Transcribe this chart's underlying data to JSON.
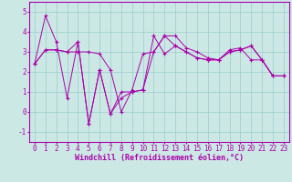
{
  "xlabel": "Windchill (Refroidissement éolien,°C)",
  "bg_color": "#cce8e4",
  "line_color": "#aa00aa",
  "grid_color": "#99cccc",
  "spine_color": "#aa00aa",
  "xlim": [
    -0.5,
    23.5
  ],
  "ylim": [
    -1.5,
    5.5
  ],
  "yticks": [
    -1,
    0,
    1,
    2,
    3,
    4,
    5
  ],
  "xticks": [
    0,
    1,
    2,
    3,
    4,
    5,
    6,
    7,
    8,
    9,
    10,
    11,
    12,
    13,
    14,
    15,
    16,
    17,
    18,
    19,
    20,
    21,
    22,
    23
  ],
  "series": [
    [
      2.4,
      3.1,
      3.1,
      3.0,
      3.0,
      3.0,
      2.9,
      2.1,
      0.0,
      1.1,
      2.9,
      3.0,
      3.8,
      3.8,
      3.2,
      3.0,
      2.7,
      2.6,
      3.0,
      3.1,
      3.3,
      2.6,
      1.8,
      1.8
    ],
    [
      2.4,
      4.8,
      3.5,
      0.7,
      3.5,
      -0.6,
      2.1,
      -0.1,
      1.0,
      1.0,
      1.1,
      3.8,
      2.9,
      3.3,
      3.0,
      2.7,
      2.6,
      2.6,
      3.1,
      3.2,
      2.6,
      2.6,
      1.8,
      1.8
    ],
    [
      2.4,
      3.1,
      3.1,
      3.0,
      3.5,
      -0.6,
      2.1,
      -0.1,
      0.7,
      1.0,
      1.1,
      3.0,
      3.8,
      3.3,
      3.0,
      2.7,
      2.6,
      2.6,
      3.0,
      3.1,
      3.3,
      2.6,
      1.8,
      1.8
    ]
  ],
  "tick_fontsize": 5.5,
  "xlabel_fontsize": 6.0
}
